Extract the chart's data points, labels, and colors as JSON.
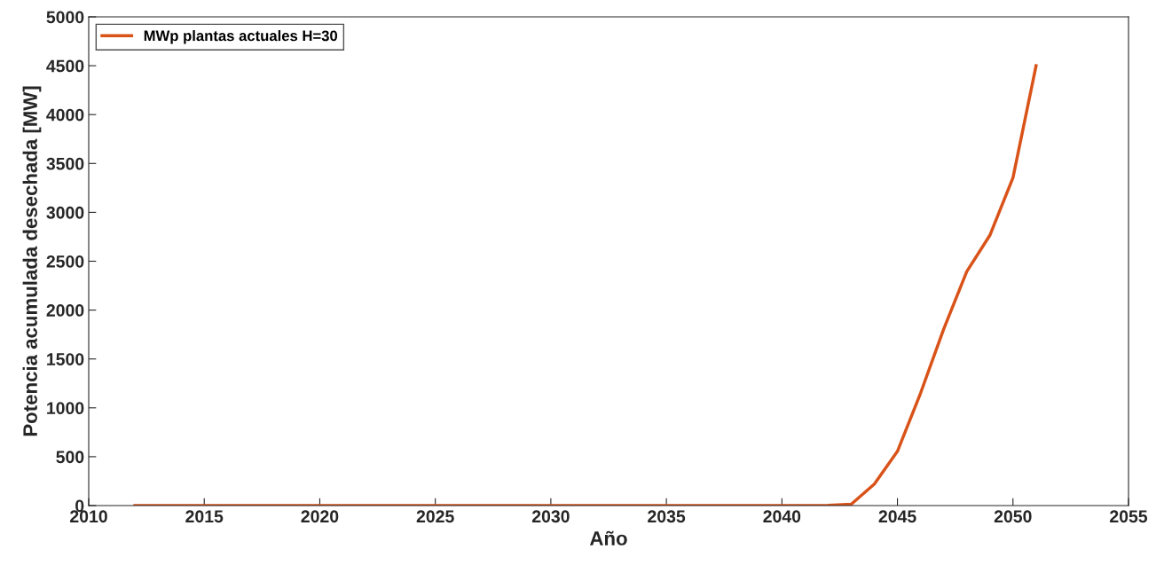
{
  "chart_data": {
    "type": "line",
    "xlabel": "Año",
    "ylabel": "Potencia acumulada desechada [MW]",
    "x": [
      2012,
      2013,
      2014,
      2015,
      2016,
      2017,
      2018,
      2019,
      2020,
      2021,
      2022,
      2023,
      2024,
      2025,
      2026,
      2027,
      2028,
      2029,
      2030,
      2031,
      2032,
      2033,
      2034,
      2035,
      2036,
      2037,
      2038,
      2039,
      2040,
      2041,
      2042,
      2043,
      2044,
      2045,
      2046,
      2047,
      2048,
      2049,
      2050,
      2051
    ],
    "series": [
      {
        "name": "MWp plantas actuales H=30",
        "color": "#d95319",
        "values": [
          0,
          0,
          0,
          0,
          0,
          0,
          0,
          0,
          0,
          0,
          0,
          0,
          0,
          0,
          0,
          0,
          0,
          0,
          0,
          0,
          0,
          0,
          0,
          0,
          0,
          0,
          0,
          0,
          0,
          0,
          3,
          13,
          220,
          555,
          1150,
          1805,
          2395,
          2765,
          3355,
          4500
        ]
      }
    ],
    "xlim": [
      2010,
      2055
    ],
    "xticks": [
      2010,
      2015,
      2020,
      2025,
      2030,
      2035,
      2040,
      2045,
      2050,
      2055
    ],
    "ylim": [
      0,
      5000
    ],
    "yticks": [
      0,
      500,
      1000,
      1500,
      2000,
      2500,
      3000,
      3500,
      4000,
      4500,
      5000
    ],
    "grid": false,
    "legend": "top left",
    "marker": "none",
    "line_style": "solid"
  }
}
